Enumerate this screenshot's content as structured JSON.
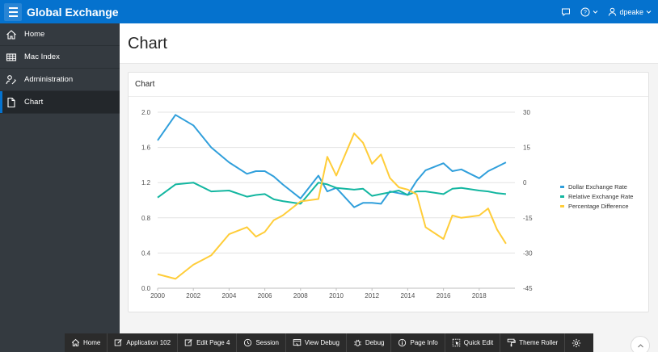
{
  "header": {
    "app_title": "Global Exchange",
    "user": "dpeake",
    "help_label": "?"
  },
  "sidebar": {
    "items": [
      {
        "label": "Home",
        "icon": "home-icon"
      },
      {
        "label": "Mac Index",
        "icon": "table-icon"
      },
      {
        "label": "Administration",
        "icon": "user-wrench-icon"
      },
      {
        "label": "Chart",
        "icon": "file-icon",
        "active": true
      }
    ]
  },
  "page": {
    "title": "Chart",
    "region_title": "Chart"
  },
  "chart_data": {
    "type": "line",
    "title": "",
    "x": [
      2000,
      2001,
      2002,
      2003,
      2004,
      2005,
      2005.5,
      2006,
      2006.5,
      2007,
      2008,
      2009,
      2009.5,
      2010,
      2011,
      2011.5,
      2012,
      2012.5,
      2013,
      2013.5,
      2014,
      2014.5,
      2015,
      2016,
      2016.5,
      2017,
      2018,
      2018.5,
      2019,
      2019.5
    ],
    "xlim": [
      2000,
      2020
    ],
    "xticks": [
      "2000",
      "2002",
      "2004",
      "2006",
      "2008",
      "2010",
      "2012",
      "2014",
      "2016",
      "2018"
    ],
    "xtick_values": [
      2000,
      2002,
      2004,
      2006,
      2008,
      2010,
      2012,
      2014,
      2016,
      2018
    ],
    "y_left": {
      "lim": [
        0.0,
        2.0
      ],
      "ticks": [
        "0.0",
        "0.4",
        "0.8",
        "1.2",
        "1.6",
        "2.0"
      ],
      "tick_values": [
        0.0,
        0.4,
        0.8,
        1.2,
        1.6,
        2.0
      ]
    },
    "y_right": {
      "lim": [
        -45,
        30
      ],
      "ticks": [
        "-45",
        "-30",
        "-15",
        "0",
        "15",
        "30"
      ],
      "tick_values": [
        -45,
        -30,
        -15,
        0,
        15,
        30
      ]
    },
    "series": [
      {
        "name": "Dollar Exchange Rate",
        "color": "#309fdb",
        "axis": "left",
        "x": [
          2000,
          2001,
          2002,
          2003,
          2004,
          2005,
          2005.5,
          2006,
          2006.5,
          2007,
          2008,
          2009,
          2009.5,
          2010,
          2011,
          2011.5,
          2012,
          2012.5,
          2013,
          2013.5,
          2014,
          2014.5,
          2015,
          2016,
          2016.5,
          2017,
          2018,
          2018.5,
          2019,
          2019.5
        ],
        "values": [
          1.68,
          1.97,
          1.85,
          1.6,
          1.43,
          1.3,
          1.33,
          1.33,
          1.27,
          1.18,
          1.02,
          1.28,
          1.1,
          1.14,
          0.92,
          0.97,
          0.97,
          0.96,
          1.1,
          1.08,
          1.06,
          1.22,
          1.34,
          1.42,
          1.33,
          1.35,
          1.25,
          1.33,
          1.38,
          1.43
        ]
      },
      {
        "name": "Relative Exchange Rate",
        "color": "#13b6a0",
        "axis": "left",
        "x": [
          2000,
          2001,
          2002,
          2003,
          2004,
          2005,
          2005.5,
          2006,
          2006.5,
          2007,
          2008,
          2009,
          2009.5,
          2010,
          2011,
          2011.5,
          2012,
          2012.5,
          2013,
          2013.5,
          2014,
          2014.5,
          2015,
          2016,
          2016.5,
          2017,
          2018,
          2018.5,
          2019,
          2019.5
        ],
        "values": [
          1.03,
          1.18,
          1.2,
          1.1,
          1.11,
          1.04,
          1.06,
          1.07,
          1.01,
          0.99,
          0.96,
          1.2,
          1.18,
          1.14,
          1.12,
          1.13,
          1.05,
          1.07,
          1.09,
          1.11,
          1.06,
          1.1,
          1.1,
          1.07,
          1.13,
          1.14,
          1.11,
          1.1,
          1.08,
          1.07
        ]
      },
      {
        "name": "Percentage Difference",
        "color": "#ffcd39",
        "axis": "right",
        "x": [
          2000,
          2001,
          2002,
          2003,
          2004,
          2005,
          2005.5,
          2006,
          2006.5,
          2007,
          2008,
          2009,
          2009.5,
          2010,
          2011,
          2011.5,
          2012,
          2012.5,
          2013,
          2013.5,
          2014,
          2014.5,
          2015,
          2016,
          2016.5,
          2017,
          2018,
          2018.5,
          2019,
          2019.5
        ],
        "values": [
          -39,
          -41,
          -35,
          -31,
          -22,
          -19,
          -23,
          -21,
          -16,
          -14,
          -8,
          -7,
          11,
          3,
          21,
          17,
          8,
          12,
          2,
          -2,
          -3,
          -5,
          -19,
          -24,
          -14,
          -15,
          -14,
          -11,
          -20,
          -26
        ]
      }
    ],
    "legend": {
      "position": "right",
      "entries": [
        "Dollar Exchange Rate",
        "Relative Exchange Rate",
        "Percentage Difference"
      ]
    },
    "grid": true
  },
  "devbar": {
    "items": [
      {
        "label": "Home",
        "icon": "home-icon"
      },
      {
        "label": "Application 102",
        "icon": "edit-icon"
      },
      {
        "label": "Edit Page 4",
        "icon": "edit-icon"
      },
      {
        "label": "Session",
        "icon": "clock-icon"
      },
      {
        "label": "View Debug",
        "icon": "window-icon"
      },
      {
        "label": "Debug",
        "icon": "bug-icon"
      },
      {
        "label": "Page Info",
        "icon": "info-icon"
      },
      {
        "label": "Quick Edit",
        "icon": "cursor-icon"
      },
      {
        "label": "Theme Roller",
        "icon": "paint-roller-icon"
      },
      {
        "label": "",
        "icon": "gear-icon"
      }
    ]
  }
}
